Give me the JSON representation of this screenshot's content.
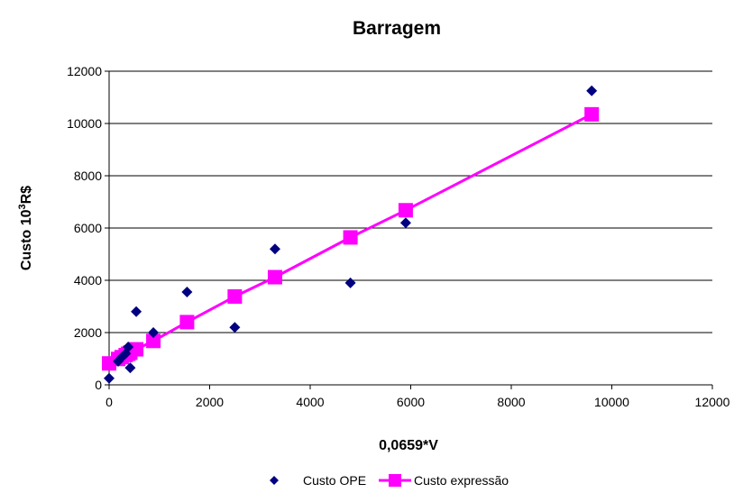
{
  "chart_data": {
    "type": "scatter",
    "title": "Barragem",
    "xlabel": "0,0659*V",
    "ylabel": {
      "prefix": "Custo 10",
      "sup": "3",
      "suffix": "R$"
    },
    "xlim": [
      0,
      12000
    ],
    "ylim": [
      0,
      12000
    ],
    "xticks": [
      0,
      2000,
      4000,
      6000,
      8000,
      10000,
      12000
    ],
    "yticks": [
      0,
      2000,
      4000,
      6000,
      8000,
      10000,
      12000
    ],
    "grid": "horizontal",
    "legend_position": "bottom",
    "series": [
      {
        "name": "Custo OPE",
        "kind": "scatter",
        "marker": "diamond",
        "color": "#000080",
        "points": [
          [
            0,
            250
          ],
          [
            180,
            900
          ],
          [
            250,
            1050
          ],
          [
            330,
            1200
          ],
          [
            380,
            1450
          ],
          [
            420,
            650
          ],
          [
            540,
            2800
          ],
          [
            880,
            2000
          ],
          [
            1550,
            3550
          ],
          [
            2500,
            2200
          ],
          [
            3300,
            5200
          ],
          [
            4800,
            3900
          ],
          [
            5900,
            6200
          ],
          [
            9600,
            11250
          ]
        ]
      },
      {
        "name": "Custo expressão",
        "kind": "line",
        "marker": "square",
        "color": "#ff00ff",
        "points": [
          [
            0,
            820
          ],
          [
            180,
            990
          ],
          [
            250,
            1060
          ],
          [
            330,
            1140
          ],
          [
            380,
            1190
          ],
          [
            420,
            1230
          ],
          [
            540,
            1360
          ],
          [
            880,
            1680
          ],
          [
            1550,
            2400
          ],
          [
            2500,
            3380
          ],
          [
            3300,
            4120
          ],
          [
            4800,
            5640
          ],
          [
            5900,
            6680
          ],
          [
            9600,
            10350
          ]
        ]
      }
    ]
  }
}
